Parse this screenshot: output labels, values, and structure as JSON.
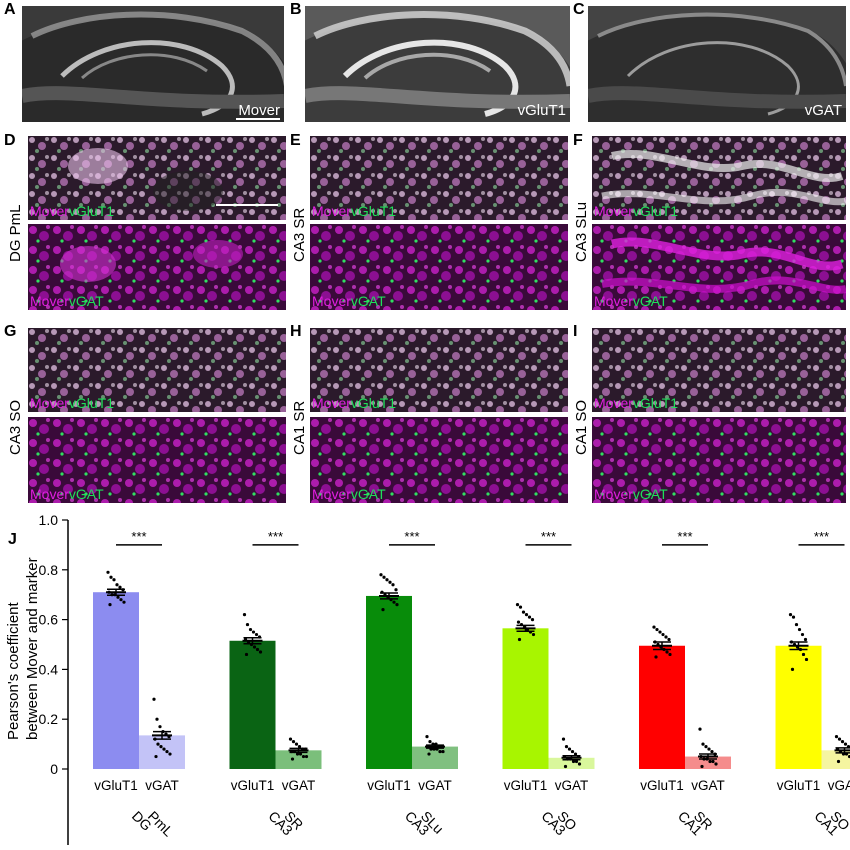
{
  "panels_top": [
    {
      "letter": "A",
      "label": "Mover",
      "base": "#6e6e6e"
    },
    {
      "letter": "B",
      "label": "vGluT1",
      "base": "#8a8a8a"
    },
    {
      "letter": "C",
      "label": "vGAT",
      "base": "#555555"
    }
  ],
  "panel_rows": [
    [
      {
        "letter": "D",
        "side": "DG PmL",
        "top_tag": [
          "Mover",
          "vGluT1"
        ],
        "bottom_tag": [
          "Mover",
          "vGAT"
        ]
      },
      {
        "letter": "E",
        "side": "CA3 SR",
        "top_tag": [
          "Mover",
          "vGluT1"
        ],
        "bottom_tag": [
          "Mover",
          "vGAT"
        ]
      },
      {
        "letter": "F",
        "side": "CA3 SLu",
        "top_tag": [
          "Mover",
          "vGluT1"
        ],
        "bottom_tag": [
          "Mover",
          "vGAT"
        ]
      }
    ],
    [
      {
        "letter": "G",
        "side": "CA3 SO",
        "top_tag": [
          "Mover",
          "vGluT1"
        ],
        "bottom_tag": [
          "Mover",
          "vGAT"
        ]
      },
      {
        "letter": "H",
        "side": "CA1 SR",
        "top_tag": [
          "Mover",
          "vGluT1"
        ],
        "bottom_tag": [
          "Mover",
          "vGAT"
        ]
      },
      {
        "letter": "I",
        "side": "CA1 SO",
        "top_tag": [
          "Mover",
          "vGluT1"
        ],
        "bottom_tag": [
          "Mover",
          "vGAT"
        ]
      }
    ]
  ],
  "chart_letter": "J",
  "chart_data": {
    "type": "bar",
    "ylabel_lines": [
      "Pearson's coefficient",
      "between Mover and marker"
    ],
    "ylim": [
      0,
      1.0
    ],
    "yticks": [
      "0",
      "0.2",
      "0.4",
      "0.6",
      "0.8",
      "1.0"
    ],
    "ytick_values": [
      0,
      0.2,
      0.4,
      0.6,
      0.8,
      1.0
    ],
    "bar_labels": [
      "vGluT1",
      "vGAT"
    ],
    "significance": "***",
    "groups": [
      {
        "region": [
          "DG",
          "PmL"
        ],
        "values": [
          0.71,
          0.135
        ],
        "errors": [
          0.012,
          0.015
        ],
        "colors": [
          "#8c8cf0",
          "#c3c3f7"
        ],
        "points": [
          [
            0.79,
            0.77,
            0.76,
            0.74,
            0.73,
            0.72,
            0.71,
            0.7,
            0.7,
            0.69,
            0.68,
            0.67,
            0.66
          ],
          [
            0.28,
            0.2,
            0.17,
            0.15,
            0.14,
            0.13,
            0.12,
            0.1,
            0.09,
            0.08,
            0.07,
            0.06,
            0.05
          ]
        ]
      },
      {
        "region": [
          "CA3",
          "SR"
        ],
        "values": [
          0.515,
          0.075
        ],
        "errors": [
          0.012,
          0.008
        ],
        "colors": [
          "#0a6414",
          "#7bbf7b"
        ],
        "points": [
          [
            0.62,
            0.58,
            0.56,
            0.55,
            0.54,
            0.53,
            0.52,
            0.51,
            0.5,
            0.49,
            0.48,
            0.47,
            0.46
          ],
          [
            0.12,
            0.11,
            0.1,
            0.09,
            0.08,
            0.08,
            0.07,
            0.07,
            0.06,
            0.06,
            0.05,
            0.05,
            0.04
          ]
        ]
      },
      {
        "region": [
          "CA3",
          "SLu"
        ],
        "values": [
          0.695,
          0.09
        ],
        "errors": [
          0.012,
          0.006
        ],
        "colors": [
          "#088c0a",
          "#80c080"
        ],
        "points": [
          [
            0.78,
            0.77,
            0.76,
            0.75,
            0.74,
            0.72,
            0.71,
            0.7,
            0.69,
            0.68,
            0.67,
            0.66,
            0.64
          ],
          [
            0.13,
            0.11,
            0.1,
            0.1,
            0.09,
            0.09,
            0.09,
            0.08,
            0.08,
            0.08,
            0.07,
            0.07,
            0.06
          ]
        ]
      },
      {
        "region": [
          "CA3",
          "SO"
        ],
        "values": [
          0.565,
          0.045
        ],
        "errors": [
          0.012,
          0.008
        ],
        "colors": [
          "#a8f500",
          "#d9f79c"
        ],
        "points": [
          [
            0.66,
            0.65,
            0.63,
            0.62,
            0.61,
            0.6,
            0.59,
            0.58,
            0.57,
            0.56,
            0.55,
            0.54,
            0.52
          ],
          [
            0.12,
            0.09,
            0.08,
            0.07,
            0.06,
            0.05,
            0.05,
            0.04,
            0.04,
            0.03,
            0.03,
            0.02,
            0.01
          ]
        ]
      },
      {
        "region": [
          "CA1",
          "SR"
        ],
        "values": [
          0.495,
          0.05
        ],
        "errors": [
          0.015,
          0.01
        ],
        "colors": [
          "#ff0000",
          "#f58c8c"
        ],
        "points": [
          [
            0.57,
            0.56,
            0.55,
            0.54,
            0.53,
            0.52,
            0.51,
            0.5,
            0.49,
            0.48,
            0.47,
            0.46,
            0.45
          ],
          [
            0.16,
            0.1,
            0.09,
            0.08,
            0.07,
            0.06,
            0.05,
            0.04,
            0.04,
            0.03,
            0.03,
            0.02,
            0.01
          ]
        ]
      },
      {
        "region": [
          "CA1",
          "SO"
        ],
        "values": [
          0.495,
          0.075
        ],
        "errors": [
          0.015,
          0.01
        ],
        "colors": [
          "#ffff00",
          "#f5f5a0"
        ],
        "points": [
          [
            0.62,
            0.61,
            0.58,
            0.56,
            0.54,
            0.52,
            0.51,
            0.5,
            0.49,
            0.48,
            0.46,
            0.44,
            0.4
          ],
          [
            0.13,
            0.12,
            0.11,
            0.1,
            0.09,
            0.09,
            0.08,
            0.07,
            0.06,
            0.06,
            0.05,
            0.04,
            0.03
          ]
        ]
      }
    ]
  }
}
